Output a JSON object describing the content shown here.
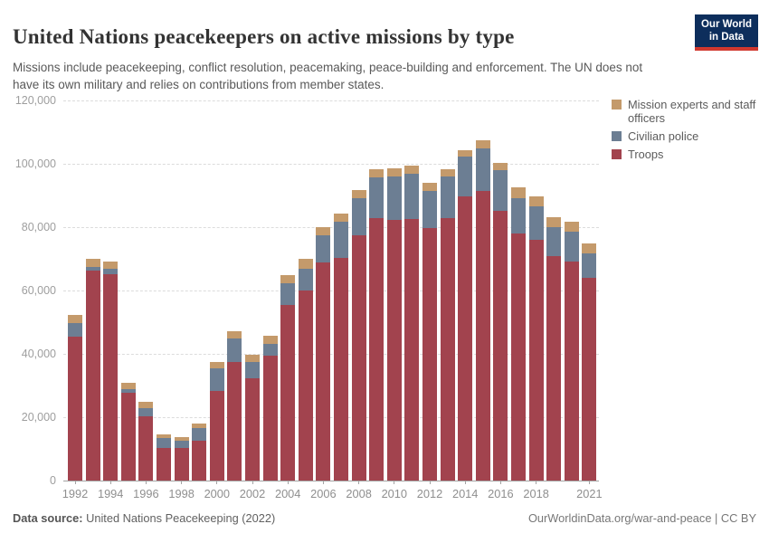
{
  "header": {
    "title": "United Nations peacekeepers on active missions by type",
    "subtitle": "Missions include peacekeeping, conflict resolution, peacemaking, peace-building and enforcement. The UN does not have its own military and relies on contributions from member states.",
    "logo": {
      "line1": "Our World",
      "line2": "in Data",
      "bg_color": "#0d2e5c",
      "stripe_color": "#d0382e"
    }
  },
  "legend": [
    {
      "label": "Mission experts and staff officers",
      "color": "#c49a6b"
    },
    {
      "label": "Civilian police",
      "color": "#6c7e93"
    },
    {
      "label": "Troops",
      "color": "#a2434e"
    }
  ],
  "chart_data": {
    "type": "bar",
    "stacked": true,
    "title": "United Nations peacekeepers on active missions by type",
    "x": [
      1992,
      1993,
      1994,
      1995,
      1996,
      1997,
      1998,
      1999,
      2000,
      2001,
      2002,
      2003,
      2004,
      2005,
      2006,
      2007,
      2008,
      2009,
      2010,
      2011,
      2012,
      2013,
      2014,
      2015,
      2016,
      2017,
      2018,
      2019,
      2020,
      2021
    ],
    "series": [
      {
        "name": "Troops",
        "color": "#a2434e",
        "values": [
          45500,
          66300,
          65100,
          27700,
          20200,
          10300,
          10300,
          12500,
          28300,
          37500,
          32400,
          39300,
          55400,
          60000,
          69000,
          70300,
          77400,
          82900,
          82300,
          82500,
          79600,
          82900,
          89800,
          91300,
          85100,
          78000,
          76100,
          70800,
          69200,
          64100
        ]
      },
      {
        "name": "Civilian police",
        "color": "#6c7e93",
        "values": [
          4100,
          1200,
          1900,
          1100,
          2700,
          3000,
          2400,
          4200,
          7100,
          7400,
          5100,
          3900,
          6900,
          7000,
          8500,
          11500,
          11700,
          12900,
          13800,
          14500,
          11900,
          13100,
          12400,
          13700,
          12800,
          11200,
          10500,
          9100,
          9300,
          7700
        ]
      },
      {
        "name": "Mission experts and staff officers",
        "color": "#c49a6b",
        "values": [
          2600,
          2400,
          2200,
          2200,
          1900,
          1200,
          1100,
          1200,
          2100,
          2200,
          2200,
          2500,
          2600,
          3100,
          2600,
          2600,
          2700,
          2600,
          2500,
          2300,
          2400,
          2400,
          2200,
          2500,
          2400,
          3300,
          3200,
          3200,
          3300,
          3100
        ]
      }
    ],
    "ylim": [
      0,
      120000
    ],
    "yticks": [
      0,
      20000,
      40000,
      60000,
      80000,
      100000,
      120000
    ],
    "ytick_labels": [
      "0",
      "20,000",
      "40,000",
      "60,000",
      "80,000",
      "100,000",
      "120,000"
    ],
    "xtick_labels": [
      "1992",
      "1994",
      "1996",
      "1998",
      "2000",
      "2002",
      "2004",
      "2006",
      "2008",
      "2010",
      "2012",
      "2014",
      "2016",
      "2018",
      "2021"
    ],
    "legend_position": "right",
    "grid": "horizontal-dashed"
  },
  "footer": {
    "source_label": "Data source:",
    "source_value": " United Nations Peacekeeping (2022)",
    "right_text": "OurWorldinData.org/war-and-peace | CC BY"
  }
}
